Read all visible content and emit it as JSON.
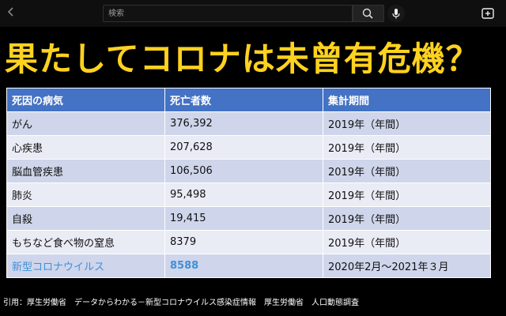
{
  "topbar": {
    "search_placeholder": "検索"
  },
  "headline": "果たしてコロナは未曾有危機？",
  "table": {
    "headers": [
      "死因の病気",
      "死亡者数",
      "集計期間"
    ],
    "rows": [
      [
        "がん",
        "376,392",
        "2019年（年間）"
      ],
      [
        "心疾患",
        "207,628",
        "2019年（年間）"
      ],
      [
        "脳血管疾患",
        "106,506",
        "2019年（年間）"
      ],
      [
        "肺炎",
        "95,498",
        "2019年（年間）"
      ],
      [
        "自殺",
        "19,415",
        "2019年（年間）"
      ],
      [
        "もちなど食べ物の窒息",
        "8379",
        "2019年（年間）"
      ],
      [
        "新型コロナウイルス",
        "8588",
        "2020年2月～2021年３月"
      ]
    ]
  },
  "footer": "引用：厚生労働省　データからわかる－新型コロナウイルス感染症情報　厚生労働省　人口動態調査",
  "colors": {
    "headline": "#ffd21f",
    "header_bg": "#4472c4",
    "row_odd": "#cfd5ea",
    "row_even": "#e9ebf5",
    "highlight_text": "#3f8fd9"
  },
  "icons": [
    "back-arrow-icon",
    "search-icon",
    "microphone-icon",
    "add-to-playlist-icon"
  ]
}
